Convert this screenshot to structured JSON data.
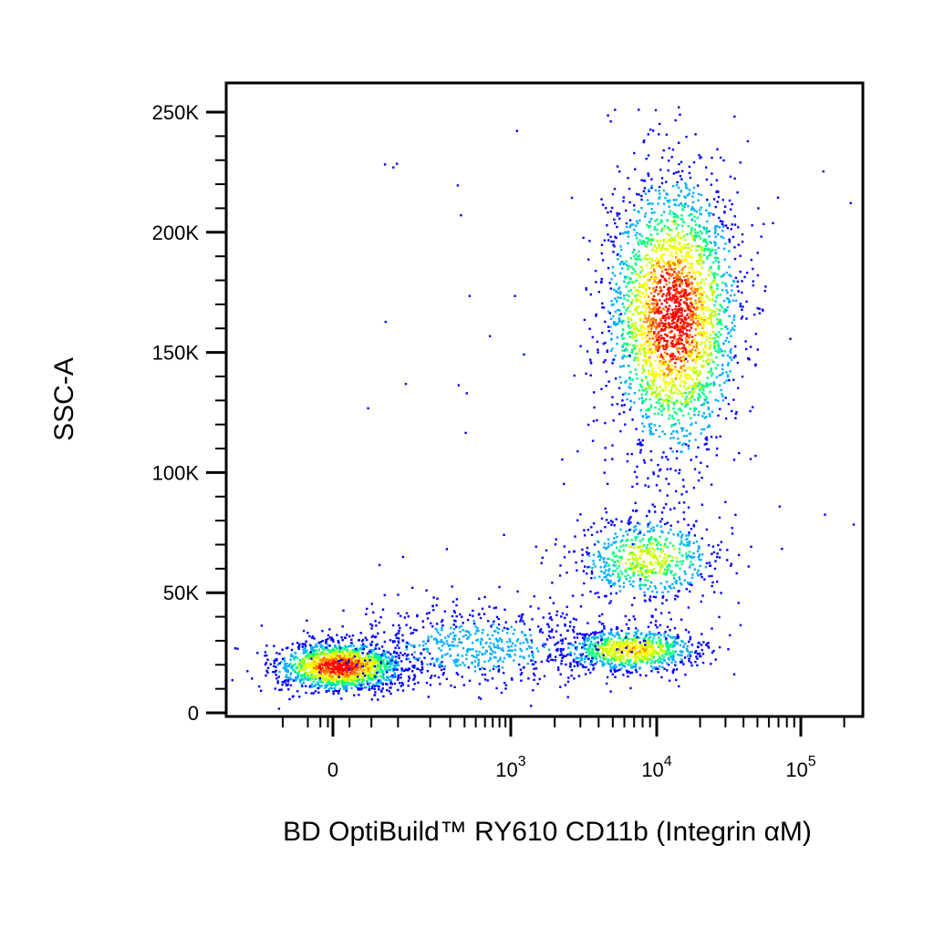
{
  "chart_data": {
    "type": "scatter",
    "style": "flow cytometry pseudocolor density dot plot",
    "xlabel": "BD OptiBuild™ RY610 CD11b (Integrin αM)",
    "ylabel": "SSC-A",
    "x_scale": "biexponential (linear near 0, log above ~10^3)",
    "y_scale": "linear",
    "ylim": [
      0,
      262144
    ],
    "y_ticks": [
      {
        "value": 0,
        "label": "0"
      },
      {
        "value": 50000,
        "label": "50K"
      },
      {
        "value": 100000,
        "label": "100K"
      },
      {
        "value": 150000,
        "label": "150K"
      },
      {
        "value": 200000,
        "label": "200K"
      },
      {
        "value": 250000,
        "label": "250K"
      }
    ],
    "x_ticks": [
      {
        "value": 0,
        "base": "0",
        "exp": ""
      },
      {
        "value": 1000,
        "base": "10",
        "exp": "3"
      },
      {
        "value": 10000,
        "base": "10",
        "exp": "4"
      },
      {
        "value": 100000,
        "base": "10",
        "exp": "5"
      }
    ],
    "density_colors": [
      "#0000ff",
      "#00b0ff",
      "#00ff80",
      "#c0ff00",
      "#ffff00",
      "#ff8000",
      "#ff0000"
    ],
    "populations": [
      {
        "name_hint": "negative",
        "x_center": 0,
        "y_center": 22000,
        "peak_density": "high"
      },
      {
        "name_hint": "low-SSC CD11b+",
        "x_center": 7000,
        "y_center": 25000,
        "peak_density": "medium"
      },
      {
        "name_hint": "mid-SSC CD11b+",
        "x_center": 8000,
        "y_center": 62000,
        "peak_density": "medium"
      },
      {
        "name_hint": "high-SSC CD11b+",
        "x_center": 11000,
        "y_center": 160000,
        "peak_density": "high"
      }
    ],
    "grid": false,
    "legend": "none"
  }
}
